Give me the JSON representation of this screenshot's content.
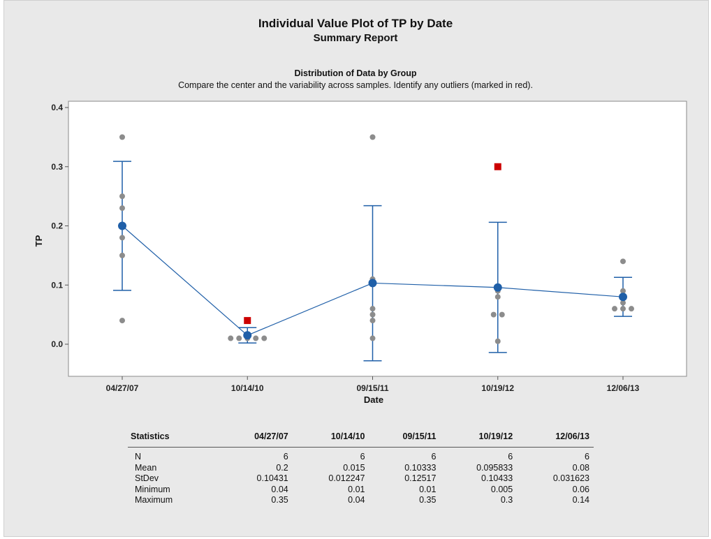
{
  "report": {
    "title": "Individual Value Plot of TP by Date",
    "subtitle": "Summary Report",
    "panel_title": "Distribution of Data by Group",
    "panel_subtitle": "Compare the center and the variability across samples. Identify any outliers (marked in red)."
  },
  "colors": {
    "background": "#e9e9e9",
    "plot_area": "#ffffff",
    "mean_line": "#1f5fa8",
    "points": "#8c8c8c",
    "outliers": "#cc0000"
  },
  "chart_data": {
    "type": "scatter",
    "xlabel": "Date",
    "ylabel": "TP",
    "categories": [
      "04/27/07",
      "10/14/10",
      "09/15/11",
      "10/19/12",
      "12/06/13"
    ],
    "ylim": [
      -0.05,
      0.41
    ],
    "yticks": [
      0.0,
      0.1,
      0.2,
      0.3,
      0.4
    ],
    "ytick_labels": [
      "0.0",
      "0.1",
      "0.2",
      "0.3",
      "0.4"
    ],
    "grid": false,
    "groups": [
      {
        "category": "04/27/07",
        "points": [
          0.04,
          0.15,
          0.18,
          0.23,
          0.25,
          0.35
        ],
        "outliers": [],
        "mean": 0.2,
        "ci": [
          0.091,
          0.309
        ]
      },
      {
        "category": "10/14/10",
        "points": [
          0.01,
          0.01,
          0.01,
          0.01,
          0.01
        ],
        "outliers": [
          0.04
        ],
        "mean": 0.015,
        "ci": [
          0.002,
          0.028
        ]
      },
      {
        "category": "09/15/11",
        "points": [
          0.01,
          0.04,
          0.05,
          0.06,
          0.11,
          0.35
        ],
        "outliers": [],
        "mean": 0.10333,
        "ci": [
          -0.028,
          0.234
        ]
      },
      {
        "category": "10/19/12",
        "points": [
          0.005,
          0.05,
          0.05,
          0.08,
          0.09
        ],
        "outliers": [
          0.3
        ],
        "mean": 0.095833,
        "ci": [
          -0.014,
          0.206
        ]
      },
      {
        "category": "12/06/13",
        "points": [
          0.06,
          0.06,
          0.06,
          0.07,
          0.09,
          0.14
        ],
        "outliers": [],
        "mean": 0.08,
        "ci": [
          0.047,
          0.113
        ]
      }
    ]
  },
  "stats_table": {
    "header": [
      "Statistics",
      "04/27/07",
      "10/14/10",
      "09/15/11",
      "10/19/12",
      "12/06/13"
    ],
    "rows": [
      [
        "N",
        "6",
        "6",
        "6",
        "6",
        "6"
      ],
      [
        "Mean",
        "0.2",
        "0.015",
        "0.10333",
        "0.095833",
        "0.08"
      ],
      [
        "StDev",
        "0.10431",
        "0.012247",
        "0.12517",
        "0.10433",
        "0.031623"
      ],
      [
        "Minimum",
        "0.04",
        "0.01",
        "0.01",
        "0.005",
        "0.06"
      ],
      [
        "Maximum",
        "0.35",
        "0.04",
        "0.35",
        "0.3",
        "0.14"
      ]
    ]
  }
}
